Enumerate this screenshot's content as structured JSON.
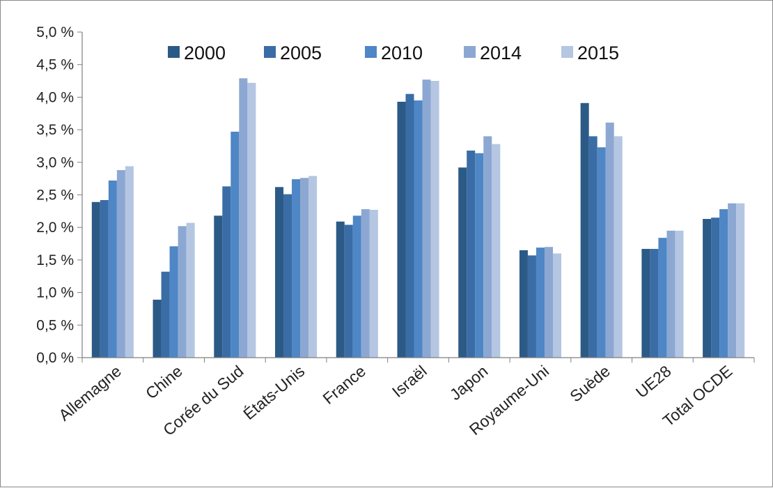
{
  "chart_data": {
    "type": "bar",
    "categories": [
      "Allemagne",
      "Chine",
      "Corée du Sud",
      "États-Unis",
      "France",
      "Israël",
      "Japon",
      "Royaume-Uni",
      "Suède",
      "UE28",
      "Total OCDE"
    ],
    "series": [
      {
        "name": "2000",
        "color": "#2c5a86",
        "values": [
          2.39,
          0.89,
          2.18,
          2.62,
          2.09,
          3.93,
          2.92,
          1.65,
          3.91,
          1.67,
          2.13
        ]
      },
      {
        "name": "2005",
        "color": "#3a6da5",
        "values": [
          2.42,
          1.32,
          2.63,
          2.51,
          2.04,
          4.05,
          3.18,
          1.57,
          3.4,
          1.67,
          2.15
        ]
      },
      {
        "name": "2010",
        "color": "#4e86c6",
        "values": [
          2.72,
          1.71,
          3.47,
          2.74,
          2.18,
          3.95,
          3.14,
          1.69,
          3.23,
          1.84,
          2.28
        ]
      },
      {
        "name": "2014",
        "color": "#8ca8d2",
        "values": [
          2.88,
          2.02,
          4.29,
          2.76,
          2.28,
          4.27,
          3.4,
          1.7,
          3.61,
          1.95,
          2.37
        ]
      },
      {
        "name": "2015",
        "color": "#b4c6e2",
        "values": [
          2.94,
          2.07,
          4.22,
          2.79,
          2.27,
          4.25,
          3.28,
          1.6,
          3.4,
          1.95,
          2.37
        ]
      }
    ],
    "ylim": [
      0,
      5
    ],
    "ytick_values": [
      0,
      0.5,
      1.0,
      1.5,
      2.0,
      2.5,
      3.0,
      3.5,
      4.0,
      4.5,
      5.0
    ],
    "ytick_labels": [
      "0,0 %",
      "0,5 %",
      "1,0 %",
      "1,5 %",
      "2,0 %",
      "2,5 %",
      "3,0 %",
      "3,5 %",
      "4,0 %",
      "4,5 %",
      "5,0 %"
    ],
    "grid": false,
    "legend_position": "top-center"
  }
}
